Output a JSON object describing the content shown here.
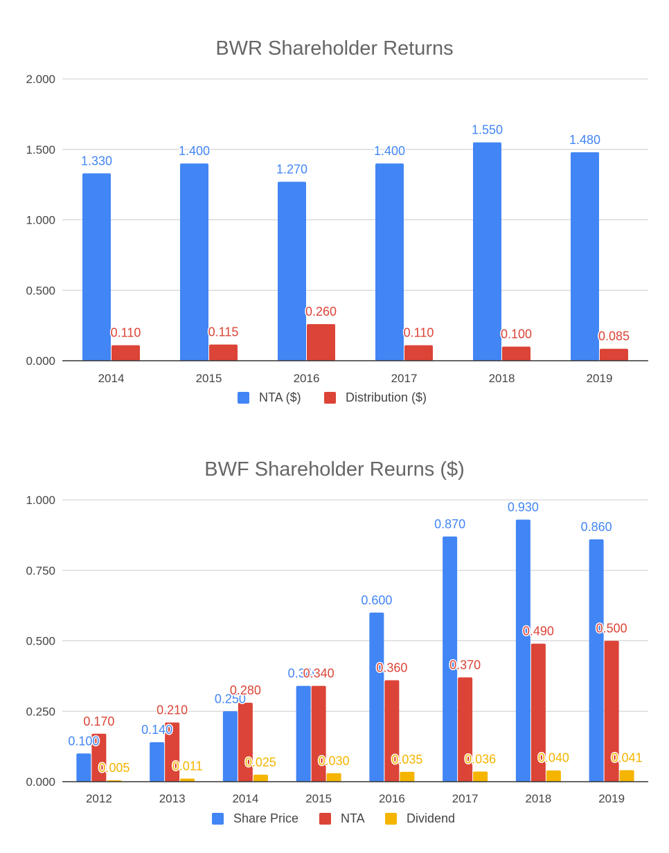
{
  "chart_data": [
    {
      "type": "bar",
      "title": "BWR Shareholder Returns",
      "xlabel": "",
      "ylabel": "",
      "ylim": [
        0,
        2
      ],
      "yticks": [
        "0.000",
        "0.500",
        "1.000",
        "1.500",
        "2.000"
      ],
      "categories": [
        "2014",
        "2015",
        "2016",
        "2017",
        "2018",
        "2019"
      ],
      "series": [
        {
          "name": "NTA ($)",
          "color": "#4285f4",
          "values": [
            1.33,
            1.4,
            1.27,
            1.4,
            1.55,
            1.48
          ],
          "labels": [
            "1.330",
            "1.400",
            "1.270",
            "1.400",
            "1.550",
            "1.480"
          ]
        },
        {
          "name": "Distribution ($)",
          "color": "#db4437",
          "values": [
            0.11,
            0.115,
            0.26,
            0.11,
            0.1,
            0.085
          ],
          "labels": [
            "0.110",
            "0.115",
            "0.260",
            "0.110",
            "0.100",
            "0.085"
          ]
        }
      ],
      "legend_position": "bottom",
      "grid": true
    },
    {
      "type": "bar",
      "title": "BWF Shareholder Reurns ($)",
      "xlabel": "",
      "ylabel": "",
      "ylim": [
        0,
        1
      ],
      "yticks": [
        "0.000",
        "0.250",
        "0.500",
        "0.750",
        "1.000"
      ],
      "categories": [
        "2012",
        "2013",
        "2014",
        "2015",
        "2016",
        "2017",
        "2018",
        "2019"
      ],
      "series": [
        {
          "name": "Share Price",
          "color": "#4285f4",
          "values": [
            0.1,
            0.14,
            0.25,
            0.34,
            0.6,
            0.87,
            0.93,
            0.86
          ],
          "labels": [
            "0.100",
            "0.140",
            "0.250",
            "0.340",
            "0.600",
            "0.870",
            "0.930",
            "0.860"
          ]
        },
        {
          "name": "NTA",
          "color": "#db4437",
          "values": [
            0.17,
            0.21,
            0.28,
            0.34,
            0.36,
            0.37,
            0.49,
            0.5
          ],
          "labels": [
            "0.170",
            "0.210",
            "0.280",
            "0.340",
            "0.360",
            "0.370",
            "0.490",
            "0.500"
          ]
        },
        {
          "name": "Dividend",
          "color": "#f4b400",
          "values": [
            0.005,
            0.011,
            0.025,
            0.03,
            0.035,
            0.036,
            0.04,
            0.041
          ],
          "labels": [
            "0.005",
            "0.011",
            "0.025",
            "0.030",
            "0.035",
            "0.036",
            "0.040",
            "0.041"
          ]
        }
      ],
      "legend_position": "bottom",
      "grid": true
    }
  ]
}
